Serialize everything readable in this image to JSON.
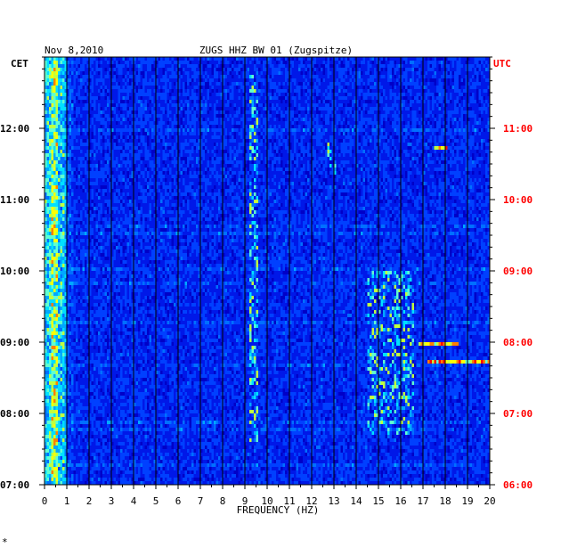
{
  "chart_data": {
    "type": "heatmap",
    "title": "ZUGS HHZ BW 01 (Zugspitze)",
    "date_label": "Nov 8,2010",
    "xlabel": "FREQUENCY (HZ)",
    "left_axis_label": "CET",
    "right_axis_label": "UTC",
    "xlim": [
      0,
      20
    ],
    "x_ticks": [
      "0",
      "1",
      "2",
      "3",
      "4",
      "5",
      "6",
      "7",
      "8",
      "9",
      "10",
      "11",
      "12",
      "13",
      "14",
      "15",
      "16",
      "17",
      "18",
      "19",
      "20"
    ],
    "left_ticks": [
      "07:00",
      "08:00",
      "09:00",
      "10:00",
      "11:00",
      "12:00"
    ],
    "right_ticks": [
      "06:00",
      "07:00",
      "08:00",
      "09:00",
      "10:00",
      "11:00"
    ],
    "time_range_cet": [
      "07:00",
      "13:00"
    ],
    "grid": true,
    "colors": {
      "background": "#0000c8",
      "low": "#0030ff",
      "mid": "#00e0ff",
      "high": "#ffff00",
      "peak": "#ff0000",
      "utc_text": "#ff0000",
      "grid": "#000000"
    },
    "hotspots": [
      {
        "band_hz": [
          0.2,
          0.8
        ],
        "time_cet": "07:00-13:00",
        "intensity": "high, continuous"
      },
      {
        "band_hz": [
          9.2,
          9.5
        ],
        "time_cet": "07:30-12:45",
        "intensity": "intermittent"
      },
      {
        "band_hz": [
          12.7,
          13.0
        ],
        "time_cet": "11:20-11:50",
        "intensity": "moderate"
      },
      {
        "band_hz": [
          14.5,
          16.5
        ],
        "time_cet": "07:45-10:00",
        "intensity": "moderate, patchy"
      },
      {
        "band_hz": [
          16.8,
          18.5
        ],
        "time_cet": "09:00",
        "intensity": "strong horizontal band"
      },
      {
        "band_hz": [
          17.2,
          20.0
        ],
        "time_cet": "08:45",
        "intensity": "strong horizontal band"
      },
      {
        "band_hz": [
          17.5,
          18.0
        ],
        "time_cet": "11:45",
        "intensity": "moderate"
      }
    ]
  },
  "corner_mark": "*"
}
